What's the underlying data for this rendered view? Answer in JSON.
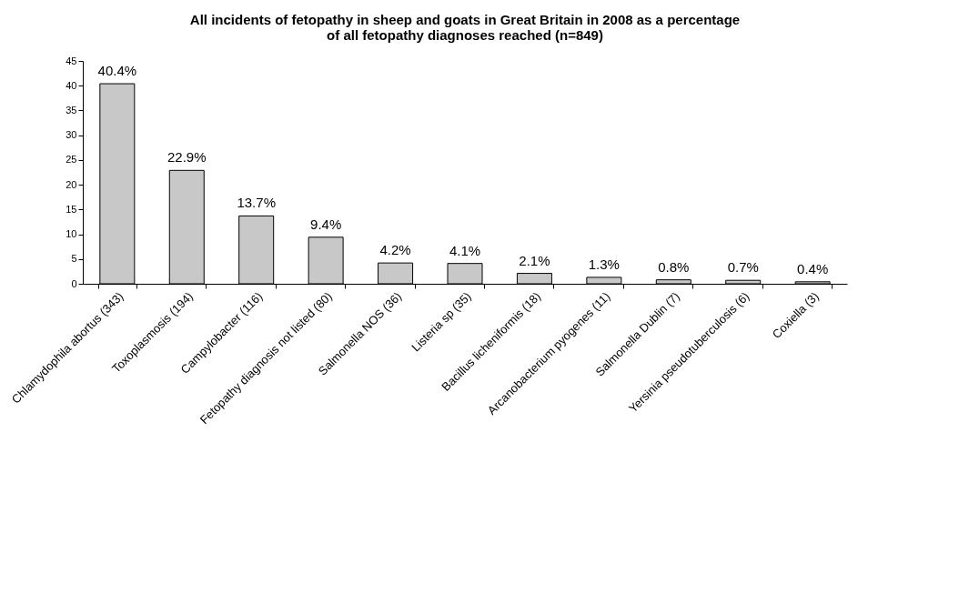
{
  "chart_data": {
    "type": "bar",
    "title": "All incidents of fetopathy in sheep and goats in Great Britain in 2008 as a percentage\nof all fetopathy diagnoses reached (n=849)",
    "categories": [
      "Chlamydophila abortus (343)",
      "Toxoplasmosis (194)",
      "Campylobacter (116)",
      "Fetopathy diagnosis not listed (80)",
      "Salmonella NOS (36)",
      "Listeria sp (35)",
      "Bacillus licheniformis (18)",
      "Arcanobacterium pyogenes (11)",
      "Salmonella Dublin (7)",
      "Yersinia pseudotuberculosis (6)",
      "Coxiella (3)"
    ],
    "values": [
      40.4,
      22.9,
      13.7,
      9.4,
      4.2,
      4.1,
      2.1,
      1.3,
      0.8,
      0.7,
      0.4
    ],
    "value_labels": [
      "40.4%",
      "22.9%",
      "13.7%",
      "9.4%",
      "4.2%",
      "4.1%",
      "2.1%",
      "1.3%",
      "0.8%",
      "0.7%",
      "0.4%"
    ],
    "color": "#c8c8c8",
    "ylim": [
      0,
      45
    ],
    "yticks": [
      0,
      5,
      10,
      15,
      20,
      25,
      30,
      35,
      40,
      45
    ],
    "grid": false
  }
}
